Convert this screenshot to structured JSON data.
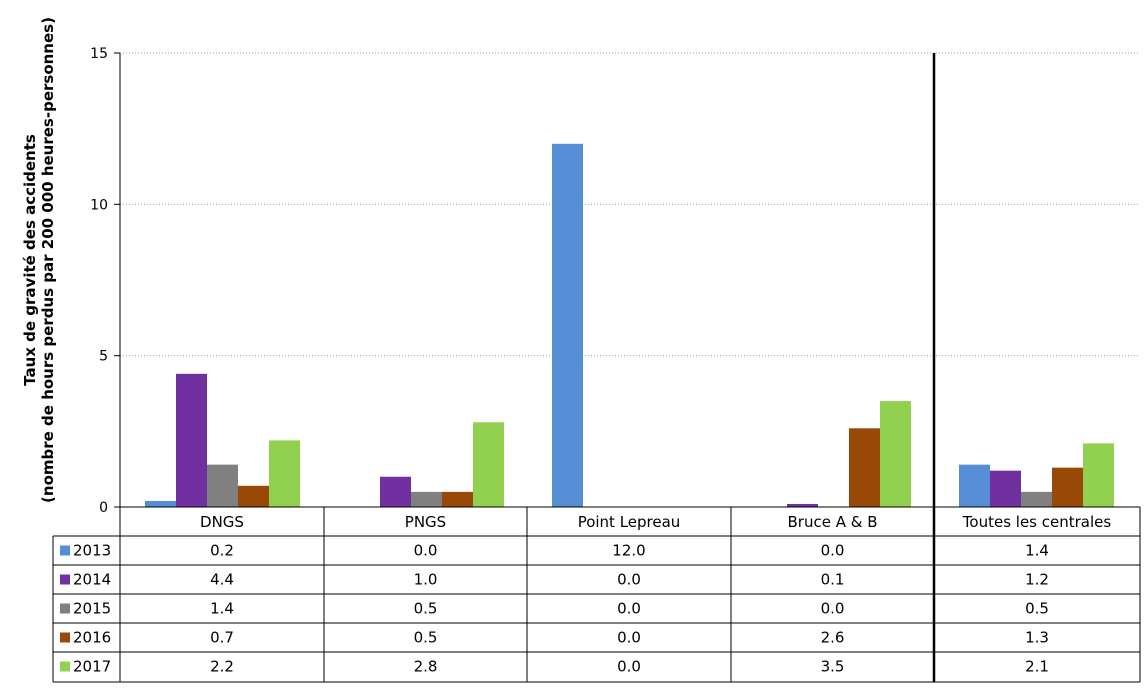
{
  "chart_data": {
    "type": "bar",
    "ylabel_lines": [
      "Taux de gravité des accidents",
      "(nombre de hours perdus par 200 000 heures-personnes)"
    ],
    "ylim": [
      0,
      15
    ],
    "yticks": [
      "0",
      "5",
      "10",
      "15"
    ],
    "grid": true,
    "categories": [
      "DNGS",
      "PNGS",
      "Point Lepreau",
      "Bruce A & B",
      "Toutes les centrales"
    ],
    "series": [
      {
        "name": "2013",
        "color": "#558ed5",
        "values": [
          0.2,
          0.0,
          12.0,
          0.0,
          1.4
        ],
        "labels": [
          "0.2",
          "0.0",
          "12.0",
          "0.0",
          "1.4"
        ]
      },
      {
        "name": "2014",
        "color": "#7030a0",
        "values": [
          4.4,
          1.0,
          0.0,
          0.1,
          1.2
        ],
        "labels": [
          "4.4",
          "1.0",
          "0.0",
          "0.1",
          "1.2"
        ]
      },
      {
        "name": "2015",
        "color": "#808080",
        "values": [
          1.4,
          0.5,
          0.0,
          0.0,
          0.5
        ],
        "labels": [
          "1.4",
          "0.5",
          "0.0",
          "0.0",
          "0.5"
        ]
      },
      {
        "name": "2016",
        "color": "#984807",
        "values": [
          0.7,
          0.5,
          0.0,
          2.6,
          1.3
        ],
        "labels": [
          "0.7",
          "0.5",
          "0.0",
          "2.6",
          "1.3"
        ]
      },
      {
        "name": "2017",
        "color": "#92d050",
        "values": [
          2.2,
          2.8,
          0.0,
          3.5,
          2.1
        ],
        "labels": [
          "2.2",
          "2.8",
          "0.0",
          "3.5",
          "2.1"
        ]
      }
    ],
    "legend_placement": "data-table-left"
  }
}
